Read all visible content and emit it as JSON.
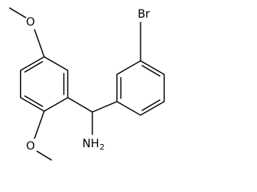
{
  "atoms": {
    "methoxy_top": "O",
    "methoxy_bottom": "O",
    "bromine": "Br",
    "amine": {
      "label": "NH",
      "subscript": "2"
    }
  }
}
